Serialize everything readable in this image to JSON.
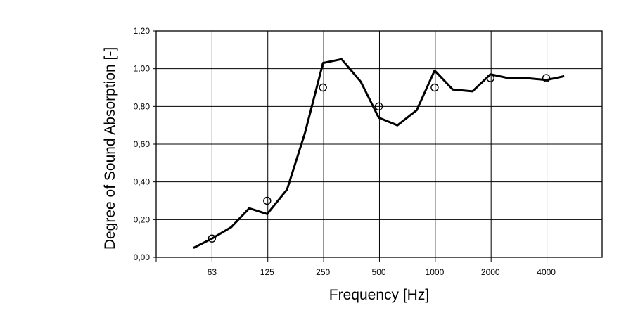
{
  "chart_data": {
    "type": "line",
    "title": "",
    "xlabel": "Frequency [Hz]",
    "ylabel": "Degree of Sound Absorption [-]",
    "x_scale": "log",
    "x_ticks": [
      "63",
      "125",
      "250",
      "500",
      "1000",
      "2000",
      "4000"
    ],
    "x_tick_values": [
      63,
      125,
      250,
      500,
      1000,
      2000,
      4000
    ],
    "xlim": [
      31.5,
      8000
    ],
    "ylim": [
      0,
      1.2
    ],
    "y_ticks": [
      "0,00",
      "0,20",
      "0,40",
      "0,60",
      "0,80",
      "1,00",
      "1,20"
    ],
    "y_tick_values": [
      0,
      0.2,
      0.4,
      0.6,
      0.8,
      1.0,
      1.2
    ],
    "grid": true,
    "legend": "none",
    "series": [
      {
        "style": "line",
        "color": "#000000",
        "x": [
          50,
          63,
          80,
          100,
          125,
          160,
          200,
          250,
          315,
          400,
          500,
          630,
          800,
          1000,
          1250,
          1600,
          2000,
          2500,
          3150,
          4000,
          5000
        ],
        "y": [
          0.05,
          0.1,
          0.16,
          0.26,
          0.23,
          0.36,
          0.66,
          1.03,
          1.05,
          0.93,
          0.74,
          0.7,
          0.78,
          0.99,
          0.89,
          0.88,
          0.97,
          0.95,
          0.95,
          0.94,
          0.96
        ]
      },
      {
        "style": "marker",
        "marker": "open-circle",
        "color": "#000000",
        "x": [
          63,
          125,
          250,
          500,
          1000,
          2000,
          4000
        ],
        "y": [
          0.1,
          0.3,
          0.9,
          0.8,
          0.9,
          0.95,
          0.95
        ]
      }
    ]
  }
}
